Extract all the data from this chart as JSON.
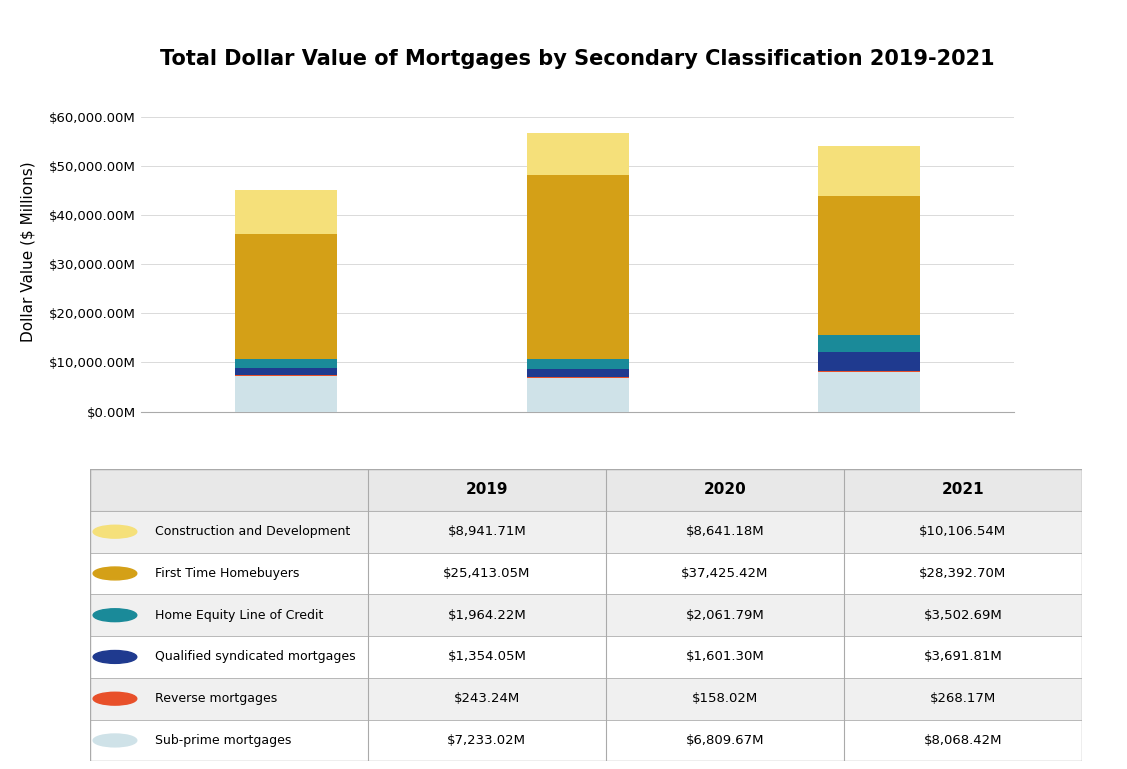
{
  "title": "Total Dollar Value of Mortgages by Secondary Classification 2019-2021",
  "years": [
    "2019",
    "2020",
    "2021"
  ],
  "categories": [
    "Sub-prime mortgages",
    "Reverse mortgages",
    "Qualified syndicated mortgages",
    "Home Equity Line of Credit",
    "First Time Homebuyers",
    "Construction and Development"
  ],
  "colors": [
    "#cfe2e8",
    "#e8502a",
    "#1f3a8f",
    "#1a8a99",
    "#d4a017",
    "#f5e07a"
  ],
  "values": {
    "Sub-prime mortgages": [
      7233.02,
      6809.67,
      8068.42
    ],
    "Reverse mortgages": [
      243.24,
      158.02,
      268.17
    ],
    "Qualified syndicated mortgages": [
      1354.05,
      1601.3,
      3691.81
    ],
    "Home Equity Line of Credit": [
      1964.22,
      2061.79,
      3502.69
    ],
    "First Time Homebuyers": [
      25413.05,
      37425.42,
      28392.7
    ],
    "Construction and Development": [
      8941.71,
      8641.18,
      10106.54
    ]
  },
  "ylabel": "Dollar Value ($ Millions)",
  "ylim": [
    0,
    65000
  ],
  "yticks": [
    0,
    10000,
    20000,
    30000,
    40000,
    50000,
    60000
  ],
  "ytick_labels": [
    "$0.00M",
    "$10,000.00M",
    "$20,000.00M",
    "$30,000.00M",
    "$40,000.00M",
    "$50,000.00M",
    "$60,000.00M"
  ],
  "bar_width": 0.35,
  "background_color": "#ffffff"
}
